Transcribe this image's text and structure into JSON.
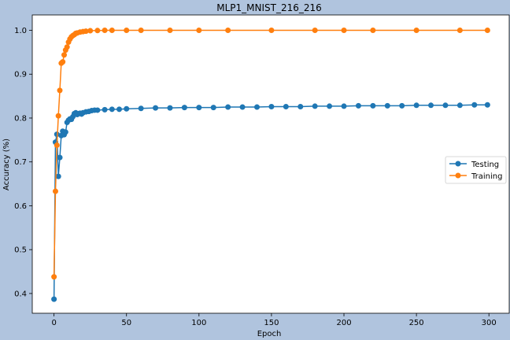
{
  "chart_data": {
    "type": "line",
    "title": "MLP1_MNIST_216_216",
    "xlabel": "Epoch",
    "ylabel": "Accuracy (%)",
    "xlim": [
      -15,
      314
    ],
    "ylim": [
      0.355,
      1.035
    ],
    "xticks": [
      0,
      50,
      100,
      150,
      200,
      250,
      300
    ],
    "yticks": [
      0.4,
      0.5,
      0.6,
      0.7,
      0.8,
      0.9,
      1.0
    ],
    "ytick_labels": [
      "0.4",
      "0.5",
      "0.6",
      "0.7",
      "0.8",
      "0.9",
      "1.0"
    ],
    "grid": false,
    "legend": "center-right",
    "series": [
      {
        "name": "Testing",
        "color": "#1f77b4",
        "marker": "circle",
        "points": [
          [
            0,
            0.387
          ],
          [
            1,
            0.745
          ],
          [
            2,
            0.763
          ],
          [
            3,
            0.667
          ],
          [
            4,
            0.71
          ],
          [
            5,
            0.76
          ],
          [
            6,
            0.77
          ],
          [
            7,
            0.762
          ],
          [
            8,
            0.768
          ],
          [
            9,
            0.79
          ],
          [
            10,
            0.795
          ],
          [
            11,
            0.798
          ],
          [
            12,
            0.797
          ],
          [
            13,
            0.803
          ],
          [
            14,
            0.81
          ],
          [
            15,
            0.812
          ],
          [
            16,
            0.808
          ],
          [
            17,
            0.81
          ],
          [
            18,
            0.811
          ],
          [
            19,
            0.809
          ],
          [
            20,
            0.812
          ],
          [
            22,
            0.814
          ],
          [
            24,
            0.815
          ],
          [
            26,
            0.817
          ],
          [
            28,
            0.818
          ],
          [
            30,
            0.818
          ],
          [
            35,
            0.819
          ],
          [
            40,
            0.82
          ],
          [
            45,
            0.82
          ],
          [
            50,
            0.821
          ],
          [
            60,
            0.822
          ],
          [
            70,
            0.823
          ],
          [
            80,
            0.823
          ],
          [
            90,
            0.824
          ],
          [
            100,
            0.824
          ],
          [
            110,
            0.824
          ],
          [
            120,
            0.825
          ],
          [
            130,
            0.825
          ],
          [
            140,
            0.825
          ],
          [
            150,
            0.826
          ],
          [
            160,
            0.826
          ],
          [
            170,
            0.826
          ],
          [
            180,
            0.827
          ],
          [
            190,
            0.827
          ],
          [
            200,
            0.827
          ],
          [
            210,
            0.828
          ],
          [
            220,
            0.828
          ],
          [
            230,
            0.828
          ],
          [
            240,
            0.828
          ],
          [
            250,
            0.829
          ],
          [
            260,
            0.829
          ],
          [
            270,
            0.829
          ],
          [
            280,
            0.829
          ],
          [
            290,
            0.83
          ],
          [
            299,
            0.83
          ]
        ]
      },
      {
        "name": "Training",
        "color": "#ff7f0e",
        "marker": "circle",
        "points": [
          [
            0,
            0.438
          ],
          [
            1,
            0.633
          ],
          [
            2,
            0.738
          ],
          [
            3,
            0.805
          ],
          [
            4,
            0.863
          ],
          [
            5,
            0.925
          ],
          [
            6,
            0.928
          ],
          [
            7,
            0.944
          ],
          [
            8,
            0.955
          ],
          [
            9,
            0.962
          ],
          [
            10,
            0.973
          ],
          [
            11,
            0.98
          ],
          [
            12,
            0.985
          ],
          [
            13,
            0.988
          ],
          [
            14,
            0.99
          ],
          [
            15,
            0.993
          ],
          [
            16,
            0.994
          ],
          [
            18,
            0.996
          ],
          [
            20,
            0.997
          ],
          [
            22,
            0.998
          ],
          [
            25,
            0.999
          ],
          [
            30,
            0.9995
          ],
          [
            35,
            1.0
          ],
          [
            40,
            1.0
          ],
          [
            50,
            1.0
          ],
          [
            60,
            1.0
          ],
          [
            80,
            1.0
          ],
          [
            100,
            1.0
          ],
          [
            120,
            1.0
          ],
          [
            150,
            1.0
          ],
          [
            180,
            1.0
          ],
          [
            200,
            1.0
          ],
          [
            220,
            1.0
          ],
          [
            250,
            1.0
          ],
          [
            280,
            1.0
          ],
          [
            299,
            1.0
          ]
        ]
      }
    ]
  }
}
